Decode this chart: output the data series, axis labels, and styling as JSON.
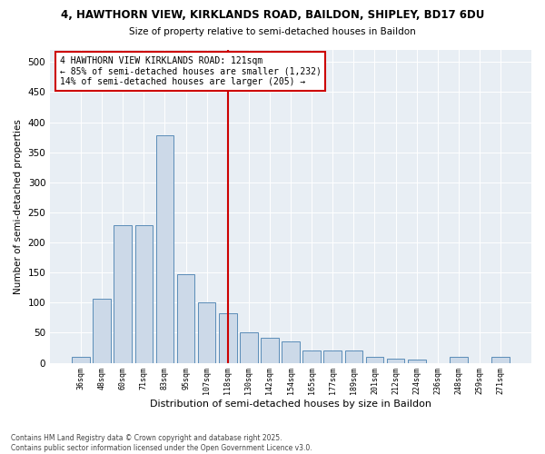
{
  "title_line1": "4, HAWTHORN VIEW, KIRKLANDS ROAD, BAILDON, SHIPLEY, BD17 6DU",
  "title_line2": "Size of property relative to semi-detached houses in Baildon",
  "xlabel": "Distribution of semi-detached houses by size in Baildon",
  "ylabel": "Number of semi-detached properties",
  "footnote1": "Contains HM Land Registry data © Crown copyright and database right 2025.",
  "footnote2": "Contains public sector information licensed under the Open Government Licence v3.0.",
  "annotation_line1": "4 HAWTHORN VIEW KIRKLANDS ROAD: 121sqm",
  "annotation_line2": "← 85% of semi-detached houses are smaller (1,232)",
  "annotation_line3": "14% of semi-detached houses are larger (205) →",
  "vline_color": "#cc0000",
  "bar_color": "#ccd9e8",
  "bar_edge_color": "#5b8db8",
  "background_color": "#e8eef4",
  "categories": [
    "36sqm",
    "48sqm",
    "60sqm",
    "71sqm",
    "83sqm",
    "95sqm",
    "107sqm",
    "118sqm",
    "130sqm",
    "142sqm",
    "154sqm",
    "165sqm",
    "177sqm",
    "189sqm",
    "201sqm",
    "212sqm",
    "224sqm",
    "236sqm",
    "248sqm",
    "259sqm",
    "271sqm"
  ],
  "values": [
    10,
    107,
    228,
    228,
    378,
    147,
    100,
    83,
    50,
    42,
    35,
    20,
    20,
    20,
    10,
    7,
    5,
    0,
    10,
    0,
    10
  ],
  "vline_idx": 7,
  "ylim": [
    0,
    520
  ],
  "yticks": [
    0,
    50,
    100,
    150,
    200,
    250,
    300,
    350,
    400,
    450,
    500
  ]
}
